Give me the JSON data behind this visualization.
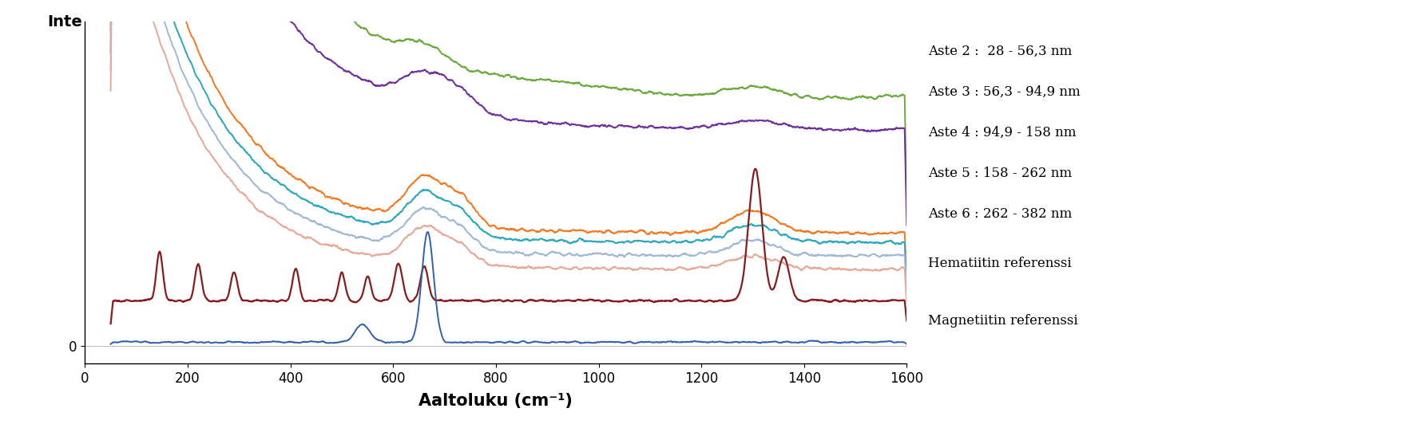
{
  "xlabel": "Aaltoluku (cm⁻¹)",
  "ylabel": "Inte",
  "xlim": [
    0,
    1600
  ],
  "x_ticks": [
    0,
    200,
    400,
    600,
    800,
    1000,
    1200,
    1400,
    1600
  ],
  "legend_entries": [
    "Aste 2 :  28 - 56,3 nm",
    "Aste 3 : 56,3 - 94,9 nm",
    "Aste 4 : 94,9 - 158 nm",
    "Aste 5 : 158 - 262 nm",
    "Aste 6 : 262 - 382 nm",
    "Hematiitin referenssi",
    "Magnetiitin referenssi"
  ],
  "colors": {
    "green": "#6aaa3a",
    "purple": "#7030a0",
    "orange": "#f47920",
    "teal": "#29a8c0",
    "lightblue": "#a0b8d8",
    "salmon": "#e8a898",
    "hematite": "#8b1a1a",
    "magnetite": "#3060b0"
  },
  "background": "#ffffff",
  "grid_color": "#c0c0c0"
}
